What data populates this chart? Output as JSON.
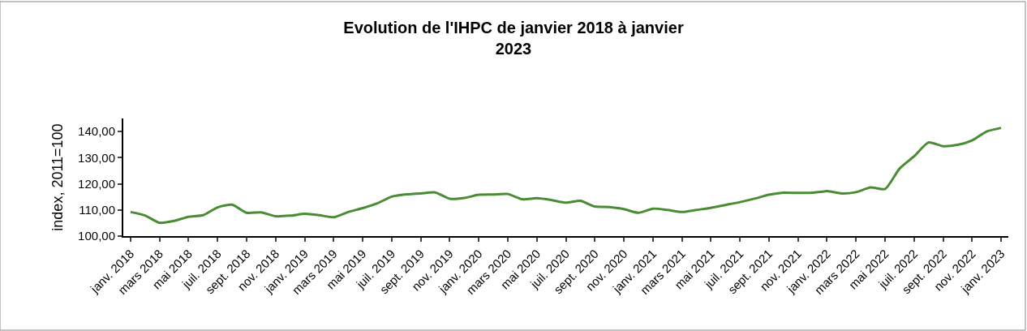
{
  "chart_data": {
    "type": "line",
    "title": "Evolution de l'IHPC de janvier 2018 à janvier\n2023",
    "ylabel": "index, 2011=100",
    "categories": [
      "janv. 2018",
      null,
      "mars 2018",
      null,
      "mai 2018",
      null,
      "juil. 2018",
      null,
      "sept. 2018",
      null,
      "nov. 2018",
      null,
      "janv. 2019",
      null,
      "mars 2019",
      null,
      "mai 2019",
      null,
      "juil. 2019",
      null,
      "sept. 2019",
      null,
      "nov. 2019",
      null,
      "janv. 2020",
      null,
      "mars 2020",
      null,
      "mai 2020",
      null,
      "juil. 2020",
      null,
      "sept. 2020",
      null,
      "nov. 2020",
      null,
      "janv. 2021",
      null,
      "mars 2021",
      null,
      "mai 2021",
      null,
      "juil. 2021",
      null,
      "sept. 2021",
      null,
      "nov. 2021",
      null,
      "janv. 2022",
      null,
      "mars 2022",
      null,
      "mai 2022",
      null,
      "juil. 2022",
      null,
      "sept. 2022",
      null,
      "nov. 2022",
      null,
      "janv. 2023"
    ],
    "series": [
      {
        "color": "#4a8c34",
        "values": [
          109.2,
          107.9,
          105.1,
          105.8,
          107.4,
          108.0,
          111.0,
          112.0,
          108.9,
          109.1,
          107.6,
          107.8,
          108.5,
          108.0,
          107.2,
          109.2,
          110.7,
          112.5,
          115.1,
          116.0,
          116.3,
          116.7,
          114.3,
          114.6,
          115.8,
          115.9,
          116.1,
          114.1,
          114.5,
          113.8,
          112.8,
          113.5,
          111.3,
          111.1,
          110.3,
          108.9,
          110.5,
          110.0,
          109.2,
          110.0,
          110.8,
          111.9,
          113.0,
          114.3,
          115.8,
          116.6,
          116.5,
          116.6,
          117.2,
          116.3,
          116.8,
          118.6,
          118.0,
          125.8,
          130.5,
          135.8,
          134.4,
          134.9,
          136.6,
          140.0,
          141.4
        ]
      }
    ],
    "ylim": [
      100,
      145
    ],
    "yticks": [
      {
        "value": 100,
        "label": "100,00"
      },
      {
        "value": 110,
        "label": "110,00"
      },
      {
        "value": 120,
        "label": "120,00"
      },
      {
        "value": 130,
        "label": "130,00"
      },
      {
        "value": 140,
        "label": "140,00"
      }
    ],
    "marker": "none",
    "line_style": "solid"
  }
}
